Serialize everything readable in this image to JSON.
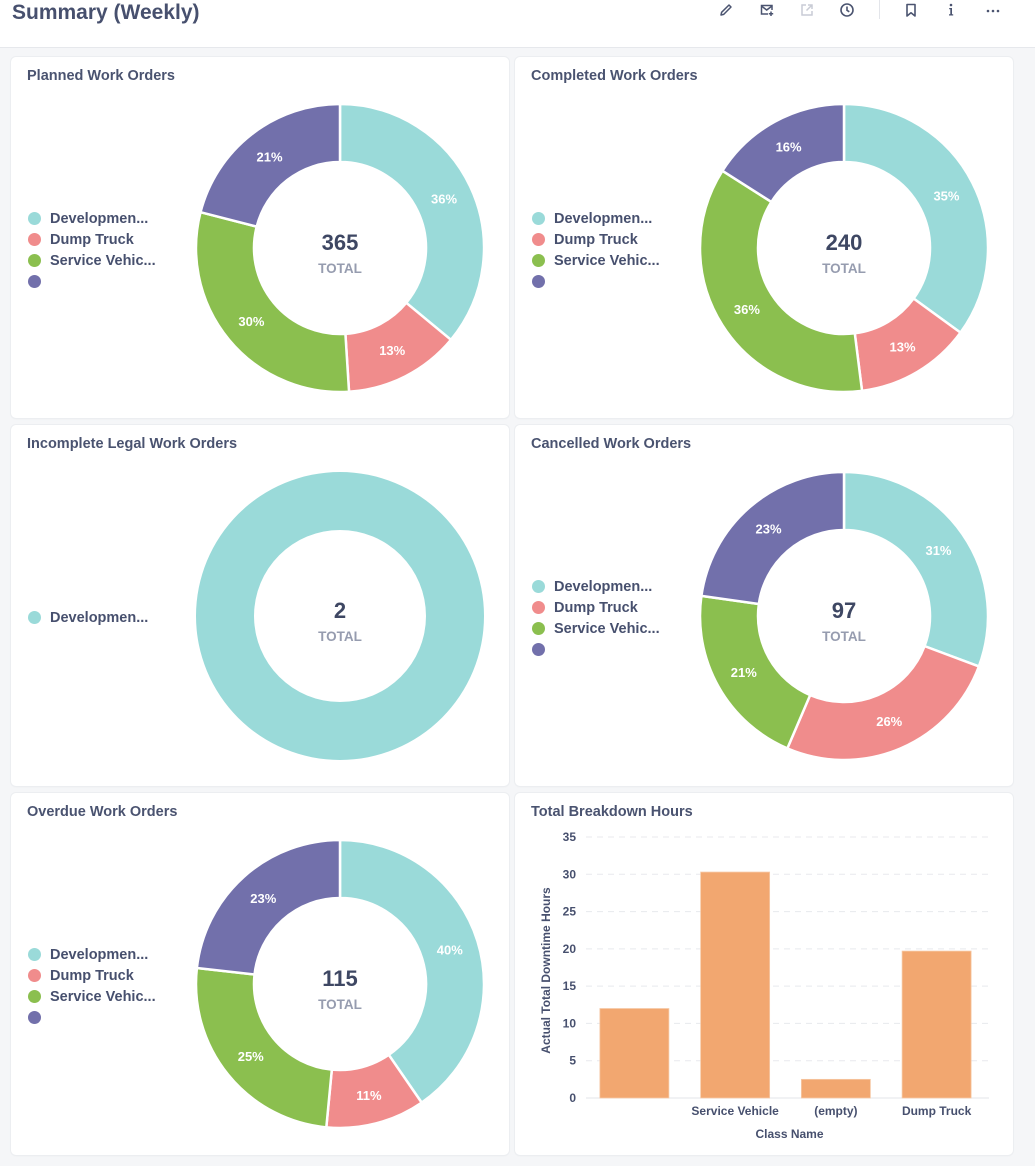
{
  "header": {
    "title": "Summary (Weekly)",
    "toolbar": [
      {
        "icon": "pencil-icon",
        "label": "Edit"
      },
      {
        "icon": "mail-plus-icon",
        "label": "Subscribe"
      },
      {
        "icon": "external-link-icon",
        "label": "Open in new window",
        "disabled": true
      },
      {
        "icon": "clock-icon",
        "label": "History"
      },
      {
        "icon": "bookmark-icon",
        "label": "Bookmark"
      },
      {
        "icon": "info-icon",
        "label": "Info"
      },
      {
        "icon": "more-icon",
        "label": "More"
      }
    ]
  },
  "colors": {
    "development": "#9adad9",
    "dump_truck": "#f08c8c",
    "service_vehicle": "#8bbf4f",
    "unnamed": "#7270ab",
    "bar": "#f2a770"
  },
  "center_caption": "TOTAL",
  "chart_data": [
    {
      "type": "pie",
      "variant": "donut",
      "title": "Planned Work Orders",
      "total": "365",
      "legend": [
        "Developmen...",
        "Dump Truck",
        "Service Vehic...",
        ""
      ],
      "slices": [
        {
          "name": "Developmen...",
          "value": 36,
          "label": "36%",
          "color": "#9adad9"
        },
        {
          "name": "Dump Truck",
          "value": 13,
          "label": "13%",
          "color": "#f08c8c"
        },
        {
          "name": "Service Vehic...",
          "value": 30,
          "label": "30%",
          "color": "#8bbf4f"
        },
        {
          "name": "",
          "value": 21,
          "label": "21%",
          "color": "#7270ab"
        }
      ]
    },
    {
      "type": "pie",
      "variant": "donut",
      "title": "Completed Work Orders",
      "total": "240",
      "legend": [
        "Developmen...",
        "Dump Truck",
        "Service Vehic...",
        ""
      ],
      "slices": [
        {
          "name": "Developmen...",
          "value": 35,
          "label": "35%",
          "color": "#9adad9"
        },
        {
          "name": "Dump Truck",
          "value": 13,
          "label": "13%",
          "color": "#f08c8c"
        },
        {
          "name": "Service Vehic...",
          "value": 36,
          "label": "36%",
          "color": "#8bbf4f"
        },
        {
          "name": "",
          "value": 16,
          "label": "16%",
          "color": "#7270ab"
        }
      ]
    },
    {
      "type": "pie",
      "variant": "donut",
      "title": "Incomplete Legal Work Orders",
      "total": "2",
      "legend": [
        "Developmen..."
      ],
      "slices": [
        {
          "name": "Developmen...",
          "value": 100,
          "label": "",
          "color": "#9adad9"
        }
      ]
    },
    {
      "type": "pie",
      "variant": "donut",
      "title": "Cancelled Work Orders",
      "total": "97",
      "legend": [
        "Developmen...",
        "Dump Truck",
        "Service Vehic...",
        ""
      ],
      "slices": [
        {
          "name": "Developmen...",
          "value": 31,
          "label": "31%",
          "color": "#9adad9"
        },
        {
          "name": "Dump Truck",
          "value": 26,
          "label": "26%",
          "color": "#f08c8c"
        },
        {
          "name": "Service Vehic...",
          "value": 21,
          "label": "21%",
          "color": "#8bbf4f"
        },
        {
          "name": "",
          "value": 23,
          "label": "23%",
          "color": "#7270ab"
        }
      ]
    },
    {
      "type": "pie",
      "variant": "donut",
      "title": "Overdue Work Orders",
      "total": "115",
      "legend": [
        "Developmen...",
        "Dump Truck",
        "Service Vehic...",
        ""
      ],
      "slices": [
        {
          "name": "Developmen...",
          "value": 40,
          "label": "40%",
          "color": "#9adad9"
        },
        {
          "name": "Dump Truck",
          "value": 11,
          "label": "11%",
          "color": "#f08c8c"
        },
        {
          "name": "Service Vehic...",
          "value": 25,
          "label": "25%",
          "color": "#8bbf4f"
        },
        {
          "name": "",
          "value": 23,
          "label": "23%",
          "color": "#7270ab"
        }
      ]
    },
    {
      "type": "bar",
      "title": "Total Breakdown Hours",
      "categories": [
        "",
        "Service Vehicle",
        "(empty)",
        "Dump Truck"
      ],
      "values": [
        12,
        30.3,
        2.5,
        19.7
      ],
      "xlabel": "Class Name",
      "ylabel": "Actual Total Downtime Hours",
      "ylim": [
        0,
        35
      ],
      "yticks": [
        0,
        5,
        10,
        15,
        20,
        25,
        30,
        35
      ],
      "grid": true,
      "color": "#f2a770"
    }
  ]
}
